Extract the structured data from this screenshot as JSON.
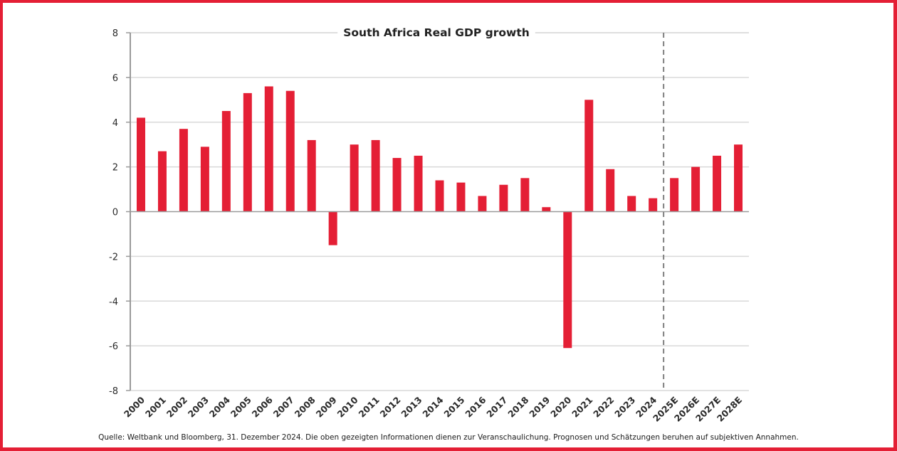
{
  "chart_data": {
    "type": "bar",
    "title": "South Africa Real GDP growth",
    "xlabel": "",
    "ylabel": "",
    "ylim": [
      -8,
      8
    ],
    "yticks": [
      8,
      6,
      4,
      2,
      0,
      -2,
      -4,
      -6,
      -8
    ],
    "grid": true,
    "legend": "none",
    "categories": [
      "2000",
      "2001",
      "2002",
      "2003",
      "2004",
      "2005",
      "2006",
      "2007",
      "2008",
      "2009",
      "2010",
      "2011",
      "2012",
      "2013",
      "2014",
      "2015",
      "2016",
      "2017",
      "2018",
      "2019",
      "2020",
      "2021",
      "2022",
      "2023",
      "2024",
      "2025E",
      "2026E",
      "2027E",
      "2028E"
    ],
    "series": [
      {
        "name": "Real GDP growth",
        "values": [
          4.2,
          2.7,
          3.7,
          2.9,
          4.5,
          5.3,
          5.6,
          5.4,
          3.2,
          -1.5,
          3.0,
          3.2,
          2.4,
          2.5,
          1.4,
          1.3,
          0.7,
          1.2,
          1.5,
          0.2,
          -6.1,
          5.0,
          1.9,
          0.7,
          0.6,
          1.5,
          2.0,
          2.5,
          3.0
        ]
      }
    ],
    "annotations": [
      {
        "type": "vertical-dashed-line",
        "between": [
          "2024",
          "2025E"
        ],
        "meaning": "forecast boundary"
      }
    ],
    "colors": {
      "bar": "#e41f35",
      "grid": "#d9d9d9",
      "axis": "#9a9a9a",
      "forecast_divider": "#7f7f7f",
      "frame": "#e41f35"
    }
  },
  "footer": {
    "source_note": "Quelle: Weltbank und Bloomberg, 31. Dezember 2024. Die oben gezeigten Informationen dienen zur Veranschaulichung. Prognosen und Schätzungen beruhen auf subjektiven Annahmen."
  }
}
